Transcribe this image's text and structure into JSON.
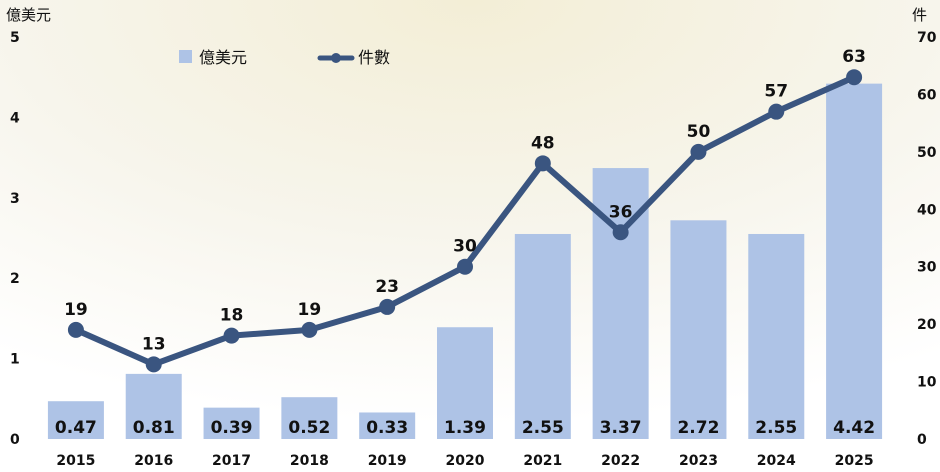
{
  "chart_data": {
    "type": "bar",
    "categories": [
      "2015",
      "2016",
      "2017",
      "2018",
      "2019",
      "2020",
      "2021",
      "2022",
      "2023",
      "2024",
      "2025"
    ],
    "series": [
      {
        "name": "億美元",
        "type": "bar",
        "axis": "left",
        "values": [
          0.47,
          0.81,
          0.39,
          0.52,
          0.33,
          1.39,
          2.55,
          3.37,
          2.72,
          2.55,
          4.42
        ],
        "labels": [
          "0.47",
          "0.81",
          "0.39",
          "0.52",
          "0.33",
          "1.39",
          "2.55",
          "3.37",
          "2.72",
          "2.55",
          "4.42"
        ]
      },
      {
        "name": "件數",
        "type": "line",
        "axis": "right",
        "values": [
          19,
          13,
          18,
          19,
          23,
          30,
          48,
          36,
          50,
          57,
          63
        ],
        "labels": [
          "19",
          "13",
          "18",
          "19",
          "23",
          "30",
          "48",
          "36",
          "50",
          "57",
          "63"
        ]
      }
    ],
    "y_left": {
      "label": "億美元",
      "ylim": [
        0,
        5
      ],
      "ticks": [
        "0",
        "1",
        "2",
        "3",
        "4",
        "5"
      ]
    },
    "y_right": {
      "label": "件",
      "ylim": [
        0,
        70
      ],
      "ticks": [
        "0",
        "10",
        "20",
        "30",
        "40",
        "50",
        "60",
        "70"
      ]
    },
    "legend": {
      "position": "top",
      "items": [
        "億美元",
        "件數"
      ]
    },
    "grid": false,
    "colors": {
      "bar": "#aec3e6",
      "line": "#3a5580",
      "text": "#111111",
      "background_glow": "#f4f0dc"
    }
  }
}
